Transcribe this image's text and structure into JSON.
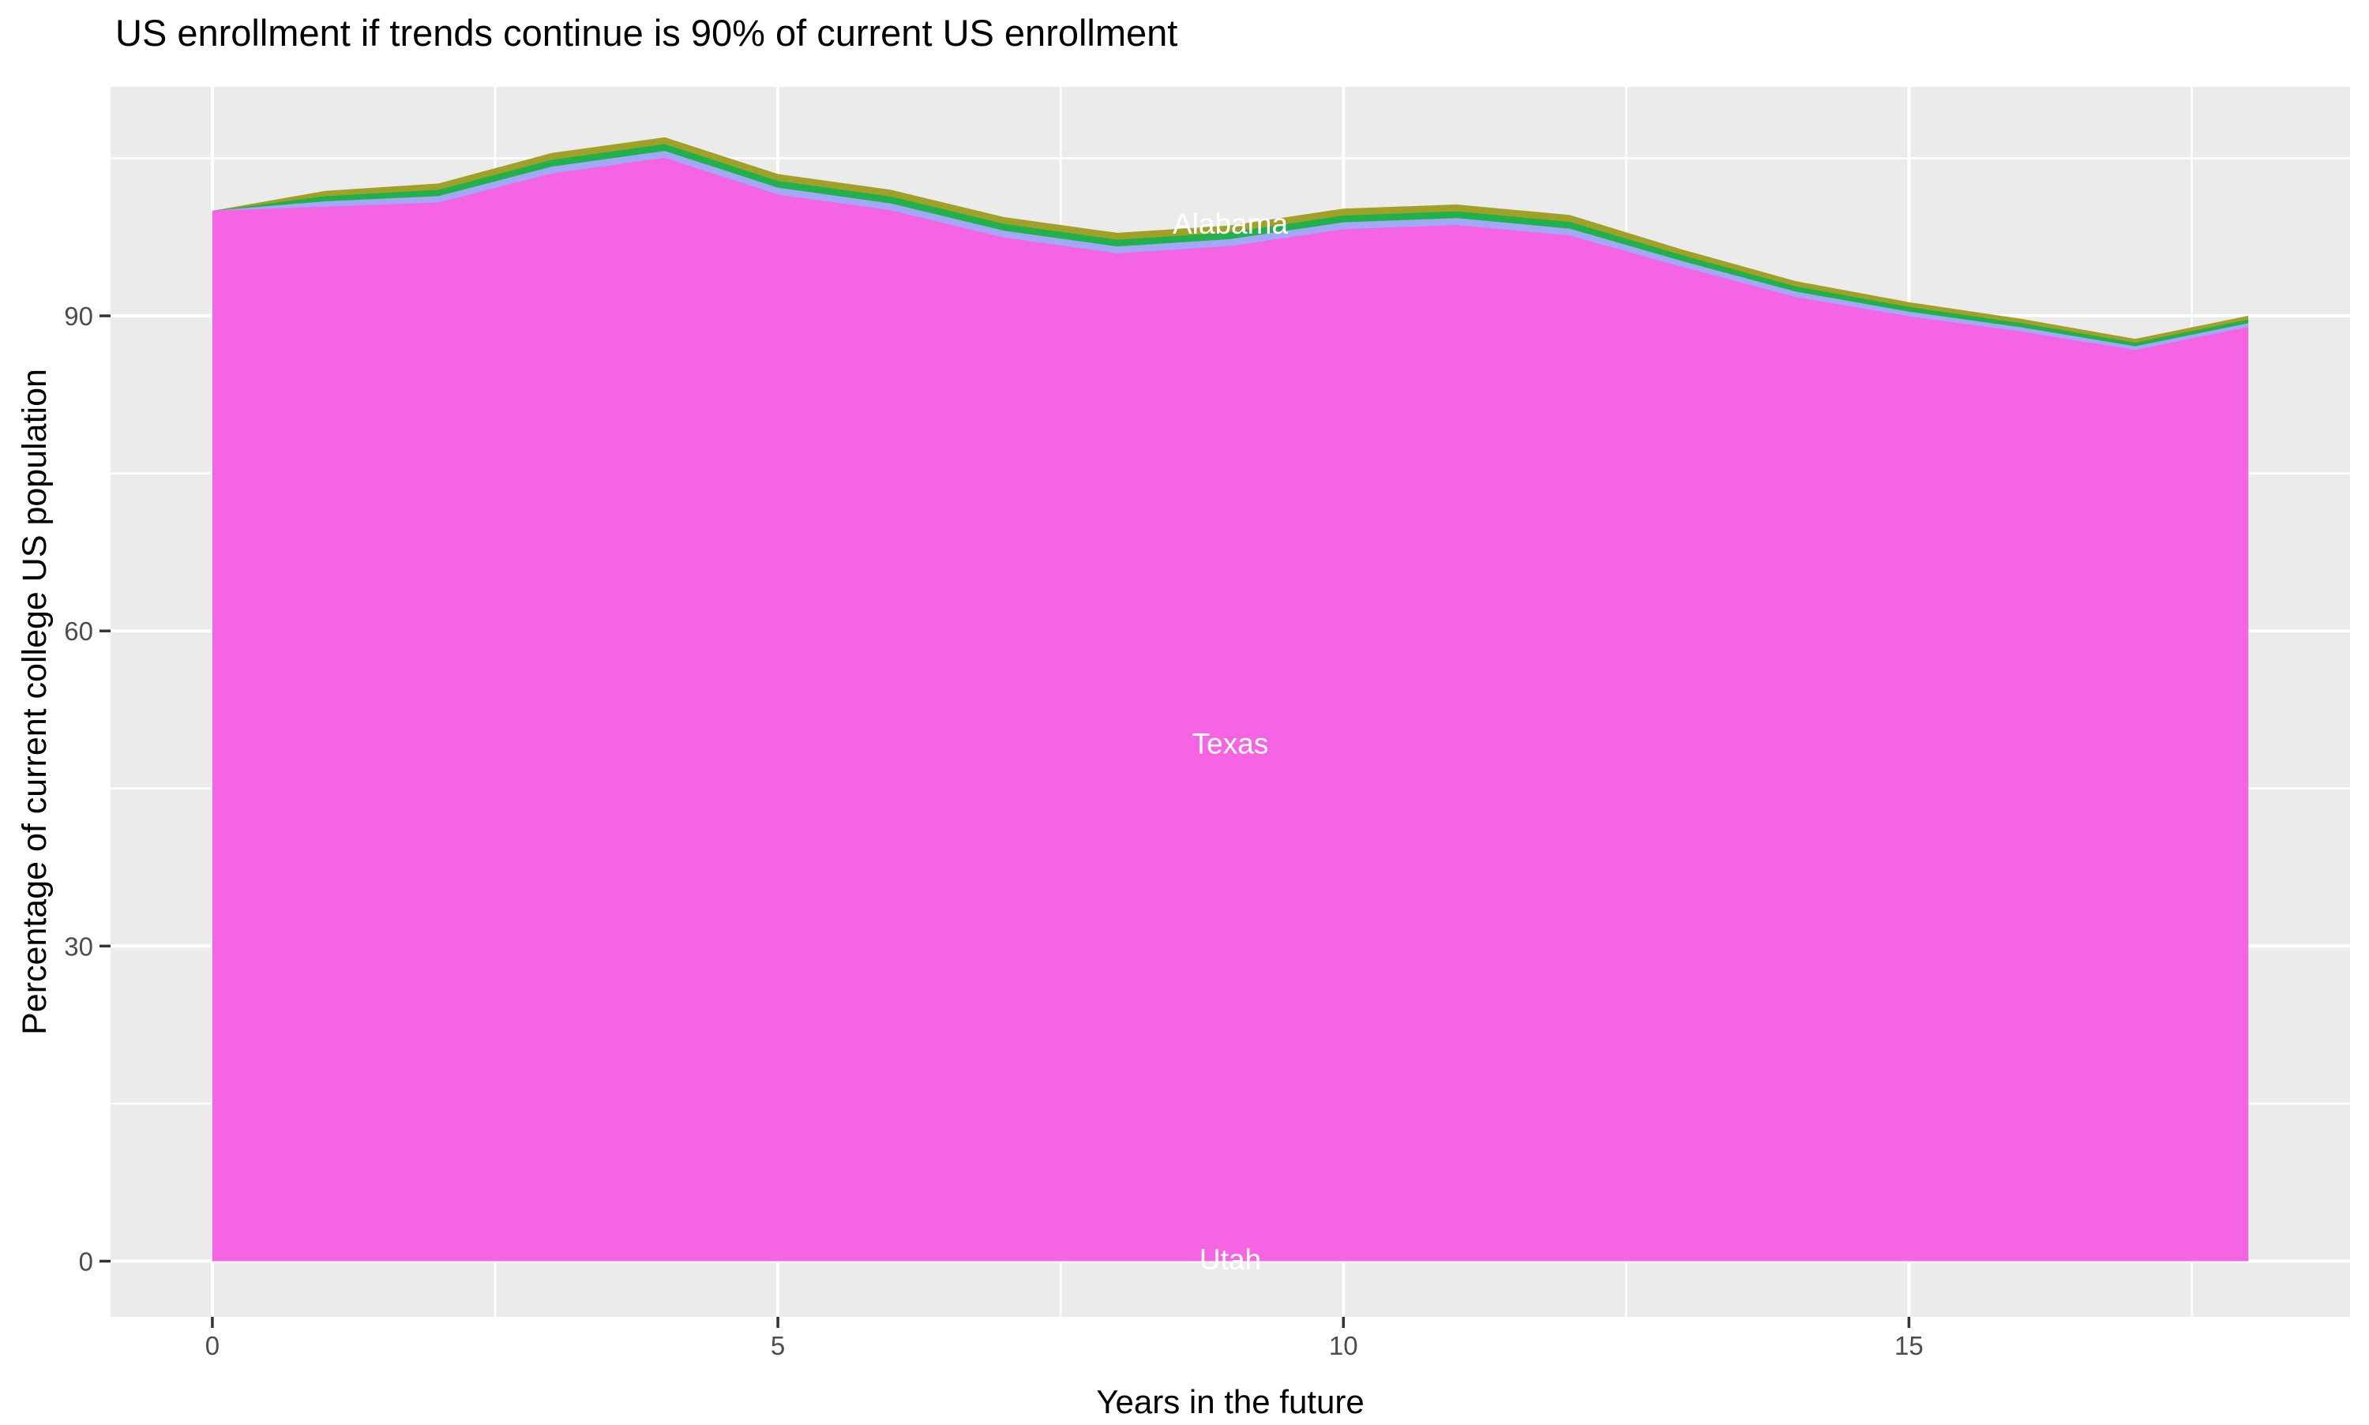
{
  "title": "US enrollment if trends continue is 90% of current US enrollment",
  "chart_data": {
    "type": "area",
    "stacking": "overlapping-identity",
    "title": "US enrollment if trends continue is 90% of current US enrollment",
    "xlabel": "Years in the future",
    "ylabel": "Percentage of current college US population",
    "x": [
      0,
      1,
      2,
      3,
      4,
      5,
      6,
      7,
      8,
      9,
      10,
      11,
      12,
      13,
      14,
      15,
      16,
      17,
      18
    ],
    "series": [
      {
        "name": "olive",
        "color": "#A2A127",
        "values": [
          100,
          101.9,
          102.6,
          105.5,
          107.0,
          103.5,
          102.0,
          99.4,
          97.9,
          98.6,
          100.2,
          100.6,
          99.6,
          96.3,
          93.3,
          91.3,
          89.7,
          87.8,
          90.0
        ]
      },
      {
        "name": "green",
        "color": "#1FB24C",
        "values": [
          100,
          101.4,
          102.0,
          104.85,
          106.35,
          102.85,
          101.35,
          98.75,
          97.25,
          97.95,
          99.55,
          99.95,
          98.95,
          95.75,
          92.8,
          90.85,
          89.3,
          87.45,
          89.65
        ]
      },
      {
        "name": "lavender",
        "color": "#A2A7F7",
        "values": [
          100,
          100.9,
          101.4,
          104.2,
          105.7,
          102.2,
          100.7,
          98.1,
          96.6,
          97.3,
          98.9,
          99.3,
          98.3,
          95.2,
          92.3,
          90.4,
          88.9,
          87.1,
          89.3
        ]
      },
      {
        "name": "magenta",
        "color": "#F564E3",
        "values": [
          100,
          100.4,
          100.8,
          103.55,
          105.05,
          101.55,
          100.05,
          97.45,
          95.95,
          96.65,
          98.25,
          98.65,
          97.65,
          94.65,
          91.8,
          89.95,
          88.5,
          86.75,
          88.95
        ]
      }
    ],
    "annotations": [
      {
        "text": "Alabama",
        "x": 9.0,
        "y": 98.8,
        "color": "#FFFFFF"
      },
      {
        "text": "Texas",
        "x": 9.0,
        "y": 49.3,
        "color": "#FFFFFF"
      },
      {
        "text": "Utah",
        "x": 9.0,
        "y": 0.2,
        "color": "#FFFFFF"
      }
    ],
    "x_ticks": [
      0,
      5,
      10,
      15
    ],
    "y_ticks": [
      0,
      30,
      60,
      90
    ],
    "x_minor_ticks": [
      2.5,
      7.5,
      12.5,
      17.5
    ],
    "y_minor_ticks": [
      15,
      45,
      75,
      105
    ],
    "xlim": [
      -0.9,
      18.9
    ],
    "ylim": [
      -5.3,
      111.8
    ],
    "grid": true,
    "legend": "none",
    "colors": {
      "panel_background": "#EBEBEB",
      "gridline": "#FFFFFF",
      "tick_mark": "#333333",
      "tick_label": "#4D4D4D",
      "title_text": "#000000",
      "axis_title_text": "#000000"
    }
  }
}
